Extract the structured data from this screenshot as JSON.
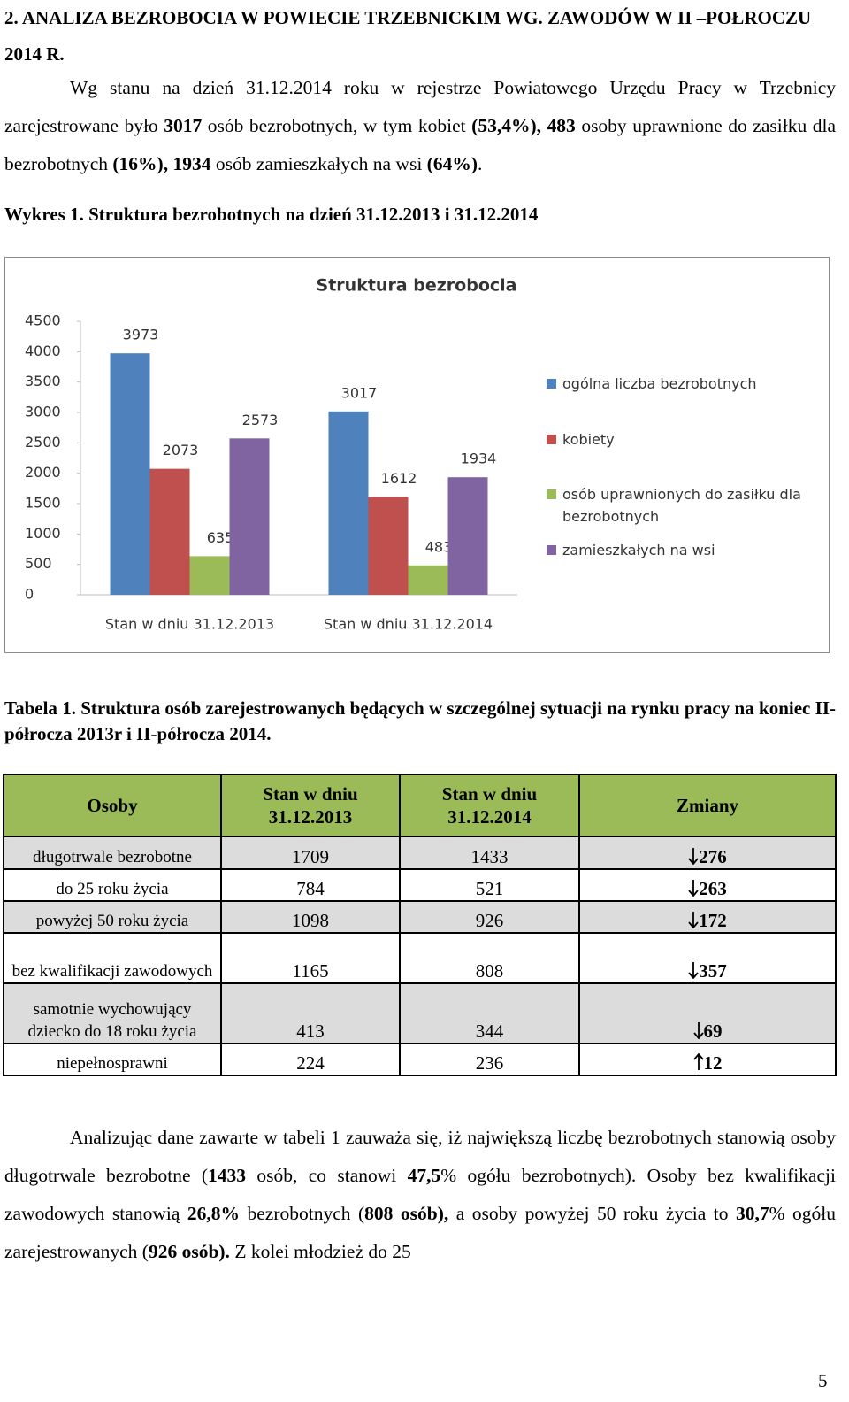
{
  "heading": "2. ANALIZA BEZROBOCIA W POWIECIE TRZEBNICKIM WG. ZAWODÓW W II –POŁROCZU 2014 R.",
  "intro": [
    {
      "text": "Wg stanu na dzień 31.12.2014 roku w rejestrze Powiatowego Urzędu Pracy w Trzebnicy zarejestrowane było ",
      "bold": false
    },
    {
      "text": "3017",
      "bold": true
    },
    {
      "text": " osób bezrobotnych, w tym kobiet ",
      "bold": false
    },
    {
      "text": "(53,4%), 483",
      "bold": true
    },
    {
      "text": " osoby uprawnione do zasiłku dla bezrobotnych ",
      "bold": false
    },
    {
      "text": "(16%), 1934",
      "bold": true
    },
    {
      "text": " osób zamieszkałych na wsi ",
      "bold": false
    },
    {
      "text": "(64%)",
      "bold": true
    },
    {
      "text": ".",
      "bold": false
    }
  ],
  "figure_caption": "Wykres 1. Struktura bezrobotnych na dzień 31.12.2013 i 31.12.2014",
  "chart_data": {
    "type": "bar",
    "title": "Struktura bezrobocia",
    "categories": [
      "Stan w dniu 31.12.2013",
      "Stan w dniu 31.12.2014"
    ],
    "series": [
      {
        "name": "ogólna liczba bezrobotnych",
        "color": "#4f81bd",
        "values": [
          3973,
          3017
        ]
      },
      {
        "name": "kobiety",
        "color": "#c0504d",
        "values": [
          2073,
          1612
        ]
      },
      {
        "name": "osób uprawnionych do zasiłku dla bezrobotnych",
        "color": "#9bbb59",
        "values": [
          635,
          483
        ]
      },
      {
        "name": "zamieszkałych na wsi",
        "color": "#8064a2",
        "values": [
          2573,
          1934
        ]
      }
    ],
    "ylim": [
      0,
      4500
    ],
    "yticks": [
      0,
      500,
      1000,
      1500,
      2000,
      2500,
      3000,
      3500,
      4000,
      4500
    ],
    "grid": false,
    "legend": "right"
  },
  "table_caption": "Tabela 1. Struktura osób zarejestrowanych będących w szczególnej sytuacji na rynku pracy na koniec II-półrocza 2013r i II-półrocza 2014.",
  "table": {
    "header": [
      "Osoby",
      "Stan w dniu 31.12.2013",
      "Stan w dniu 31.12.2014",
      "Zmiany"
    ],
    "rows": [
      {
        "label": "długotrwale bezrobotne",
        "y2013": 1709,
        "y2014": 1433,
        "change": 276,
        "direction": "down"
      },
      {
        "label": "do 25 roku życia",
        "y2013": 784,
        "y2014": 521,
        "change": 263,
        "direction": "down"
      },
      {
        "label": "powyżej 50 roku życia",
        "y2013": 1098,
        "y2014": 926,
        "change": 172,
        "direction": "down"
      },
      {
        "label": "bez kwalifikacji zawodowych",
        "y2013": 1165,
        "y2014": 808,
        "change": 357,
        "direction": "down"
      },
      {
        "label": "samotnie wychowujący dziecko do 18 roku życia",
        "y2013": 413,
        "y2014": 344,
        "change": 69,
        "direction": "down"
      },
      {
        "label": "niepełnosprawni",
        "y2013": 224,
        "y2014": 236,
        "change": 12,
        "direction": "up"
      }
    ]
  },
  "analysis": [
    {
      "text": "Analizując dane zawarte w tabeli 1 zauważa się, iż największą liczbę bezrobotnych stanowią osoby długotrwale bezrobotne (",
      "bold": false
    },
    {
      "text": "1433",
      "bold": true
    },
    {
      "text": " osób, co stanowi ",
      "bold": false
    },
    {
      "text": "47,5",
      "bold": true
    },
    {
      "text": "% ogółu bezrobotnych). Osoby bez kwalifikacji zawodowych stanowią ",
      "bold": false
    },
    {
      "text": "26,8%",
      "bold": true
    },
    {
      "text": " bezrobotnych (",
      "bold": false
    },
    {
      "text": "808 osób),",
      "bold": true
    },
    {
      "text": " a osoby powyżej 50 roku życia to ",
      "bold": false
    },
    {
      "text": "30,7",
      "bold": true
    },
    {
      "text": "% ogółu zarejestrowanych (",
      "bold": false
    },
    {
      "text": "926 osób).",
      "bold": true
    },
    {
      "text": " Z kolei młodzież do 25",
      "bold": false
    }
  ],
  "page_number": "5"
}
